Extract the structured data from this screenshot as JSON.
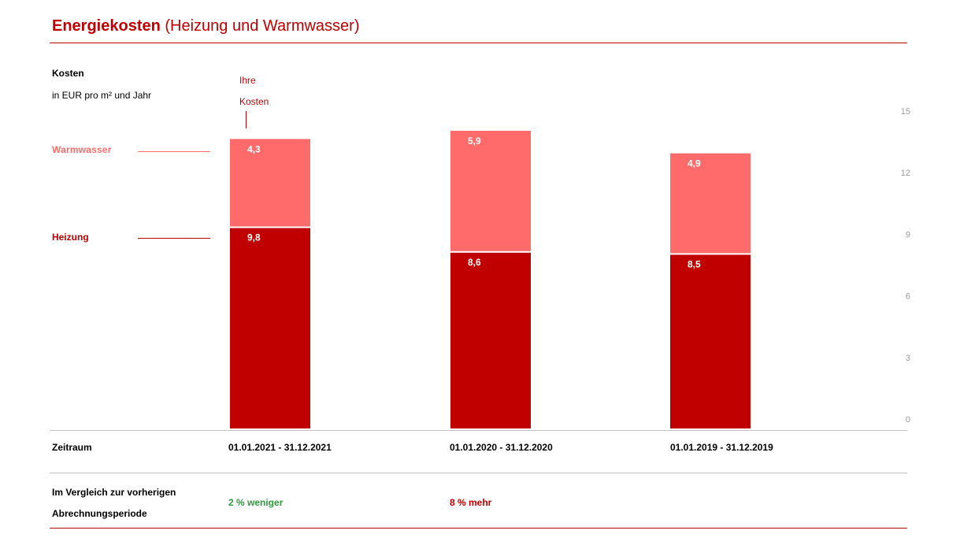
{
  "header": {
    "title_main": "Energiekosten",
    "title_sub": "(Heizung und Warmwasser)"
  },
  "axis": {
    "label": "Kosten",
    "unit": "in EUR pro m² und Jahr",
    "marker_line1": "Ihre",
    "marker_line2": "Kosten"
  },
  "legend": {
    "warmwasser": "Warmwasser",
    "heizung": "Heizung"
  },
  "colors": {
    "accent": "#c00000",
    "heizung": "#c00000",
    "warmwasser": "#ff6b6b",
    "positive": "#2e9b3a",
    "axis_text": "#9a9a9a"
  },
  "chart_data": {
    "type": "bar",
    "stacked": true,
    "categories": [
      "01.01.2021 - 31.12.2021",
      "01.01.2020 - 31.12.2020",
      "01.01.2019 - 31.12.2019"
    ],
    "series": [
      {
        "name": "Heizung",
        "values": [
          9.8,
          8.6,
          8.5
        ],
        "labels": [
          "9,8",
          "8,6",
          "8,5"
        ]
      },
      {
        "name": "Warmwasser",
        "values": [
          4.3,
          5.9,
          4.9
        ],
        "labels": [
          "4,3",
          "5,9",
          "4,9"
        ]
      }
    ],
    "ylim": [
      0,
      15
    ],
    "yticks": [
      "0",
      "3",
      "6",
      "9",
      "12",
      "15"
    ],
    "ytick_values": [
      0,
      3,
      6,
      9,
      12,
      15
    ],
    "grid": false,
    "axis_position": "right"
  },
  "table": {
    "period_label": "Zeitraum",
    "periods": [
      "01.01.2021 - 31.12.2021",
      "01.01.2020 - 31.12.2020",
      "01.01.2019 - 31.12.2019"
    ],
    "comparison_label_line1": "Im Vergleich zur vorherigen",
    "comparison_label_line2": "Abrechnungsperiode",
    "comparisons": [
      "2 % weniger",
      "8 % mehr"
    ]
  }
}
